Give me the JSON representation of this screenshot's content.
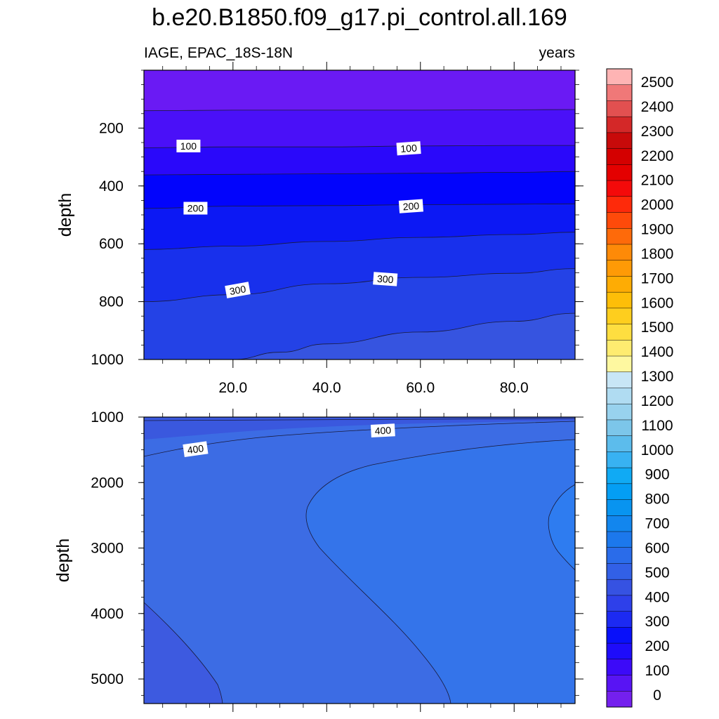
{
  "chart_data": {
    "type": "contour",
    "title": "b.e20.B1850.f09_g17.pi_control.all.169",
    "subtitle_left": "IAGE, EPAC_18S-18N",
    "subtitle_right": "years",
    "xlabel": "",
    "ylabel": "depth",
    "xlim": [
      1,
      93
    ],
    "x_tick_labels": [
      "20.0",
      "40.0",
      "60.0",
      "80.0"
    ],
    "x_ticks": [
      20,
      40,
      60,
      80
    ],
    "panels": [
      {
        "name": "upper",
        "ylim": [
          0,
          1000
        ],
        "y_ticks": [
          200,
          400,
          600,
          800,
          1000
        ],
        "y_tick_labels": [
          "200",
          "400",
          "600",
          "800",
          "1000"
        ],
        "bands": [
          {
            "level": 0,
            "color": "#6A1AF4",
            "lower_boundary": [
              [
                1,
                140
              ],
              [
                20,
                138
              ],
              [
                40,
                138
              ],
              [
                60,
                138
              ],
              [
                80,
                137
              ],
              [
                93,
                136
              ]
            ]
          },
          {
            "level": 50,
            "color": "#4A10F8",
            "lower_boundary": [
              [
                1,
                268
              ],
              [
                20,
                265
              ],
              [
                40,
                265
              ],
              [
                60,
                262
              ],
              [
                80,
                260
              ],
              [
                93,
                260
              ]
            ]
          },
          {
            "level": 100,
            "color": "#2A08FA",
            "lower_boundary": [
              [
                1,
                362
              ],
              [
                20,
                360
              ],
              [
                40,
                358
              ],
              [
                60,
                356
              ],
              [
                80,
                353
              ],
              [
                93,
                350
              ]
            ]
          },
          {
            "level": 150,
            "color": "#0204FC",
            "lower_boundary": [
              [
                1,
                478
              ],
              [
                20,
                470
              ],
              [
                40,
                468
              ],
              [
                60,
                465
              ],
              [
                80,
                463
              ],
              [
                93,
                462
              ]
            ]
          },
          {
            "level": 200,
            "color": "#0C18F4",
            "lower_boundary": [
              [
                1,
                620
              ],
              [
                20,
                608
              ],
              [
                40,
                592
              ],
              [
                60,
                578
              ],
              [
                80,
                568
              ],
              [
                93,
                560
              ]
            ]
          },
          {
            "level": 250,
            "color": "#1830EC",
            "lower_boundary": [
              [
                1,
                800
              ],
              [
                20,
                776
              ],
              [
                40,
                738
              ],
              [
                60,
                716
              ],
              [
                80,
                702
              ],
              [
                93,
                686
              ]
            ]
          },
          {
            "level": 300,
            "color": "#2442E6",
            "lower_boundary": [
              [
                20,
                1000
              ],
              [
                30,
                975
              ],
              [
                40,
                946
              ],
              [
                60,
                905
              ],
              [
                80,
                868
              ],
              [
                93,
                840
              ]
            ]
          },
          {
            "level": 350,
            "color": "#3654E0",
            "lower_boundary": []
          }
        ],
        "labels": [
          {
            "text": "100",
            "x": 10.5,
            "y": 262,
            "rotation": 0
          },
          {
            "text": "100",
            "x": 57.5,
            "y": 270,
            "rotation": -4
          },
          {
            "text": "200",
            "x": 12,
            "y": 477,
            "rotation": 0
          },
          {
            "text": "200",
            "x": 58,
            "y": 470,
            "rotation": -4
          },
          {
            "text": "300",
            "x": 21,
            "y": 760,
            "rotation": -10
          },
          {
            "text": "300",
            "x": 52.5,
            "y": 722,
            "rotation": 4
          }
        ]
      },
      {
        "name": "lower",
        "ylim": [
          1000,
          5375
        ],
        "y_ticks": [
          1000,
          2000,
          3000,
          4000,
          5000
        ],
        "y_tick_labels": [
          "1000",
          "2000",
          "3000",
          "4000",
          "5000"
        ],
        "bands": [
          {
            "level": 350,
            "color": "#3A58DE",
            "region": "top strip above 400 contour"
          },
          {
            "level": 400,
            "color": "#3C6CE4",
            "region": "main field"
          },
          {
            "level": 400,
            "color": "#3D5AE0",
            "region": "deep left pocket"
          },
          {
            "level": 450,
            "color": "#3474EA",
            "region": "right wedge"
          },
          {
            "level": 500,
            "color": "#2E7CF0",
            "region": "right edge core"
          }
        ],
        "labels": [
          {
            "text": "400",
            "x": 12,
            "y": 1490,
            "rotation": -8
          },
          {
            "text": "400",
            "x": 52,
            "y": 1205,
            "rotation": -3
          }
        ]
      }
    ],
    "colorbar": {
      "labels": [
        "2500",
        "2400",
        "2300",
        "2200",
        "2100",
        "2000",
        "1900",
        "1800",
        "1700",
        "1600",
        "1500",
        "1400",
        "1300",
        "1200",
        "1100",
        "1000",
        "900",
        "800",
        "700",
        "600",
        "500",
        "400",
        "300",
        "200",
        "100",
        "0"
      ],
      "colors": [
        "#FEB4B4",
        "#F07878",
        "#E25050",
        "#D42828",
        "#C80A0A",
        "#D40000",
        "#E40000",
        "#F40A0A",
        "#FE2A0A",
        "#FE4A0A",
        "#FE6A0A",
        "#FE8A08",
        "#FE9A06",
        "#FEAC04",
        "#FEBE08",
        "#FECE1E",
        "#FEDE40",
        "#FEEC70",
        "#FEF8A0",
        "#C8E6F6",
        "#B0DCF2",
        "#98D2EE",
        "#7CC6EA",
        "#5CBCEC",
        "#38B2F2",
        "#10AAF4",
        "#049EF4",
        "#0894F0",
        "#1286EE",
        "#1C78EC",
        "#2A6CEA",
        "#3260E6",
        "#3652E2",
        "#2E40EA",
        "#1C2AF2",
        "#0810FA",
        "#1E0CFA",
        "#3C0AF8",
        "#5814F4",
        "#7420EE"
      ]
    }
  }
}
